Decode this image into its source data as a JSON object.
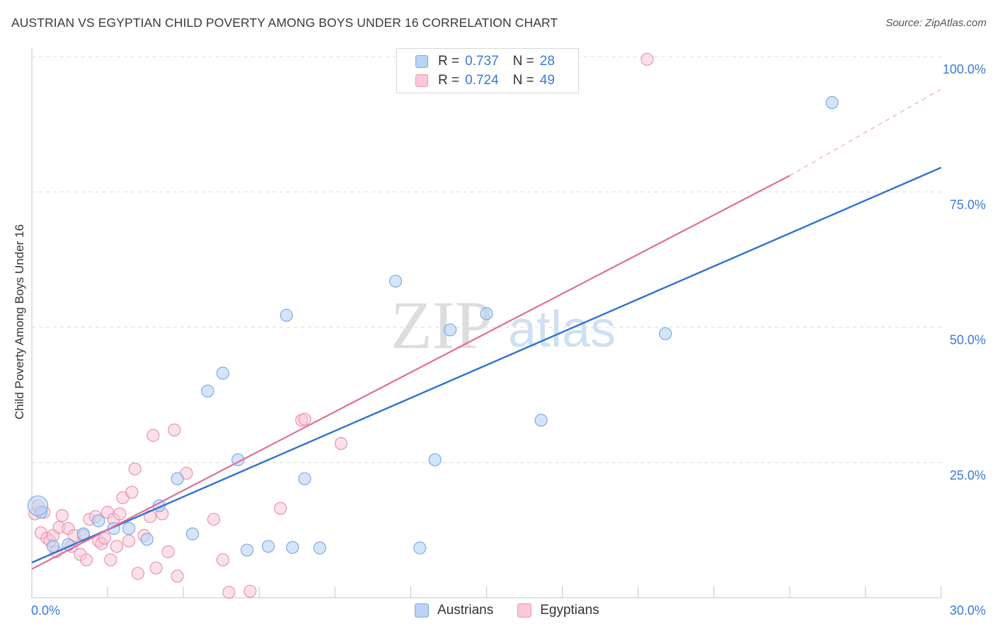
{
  "title": "AUSTRIAN VS EGYPTIAN CHILD POVERTY AMONG BOYS UNDER 16 CORRELATION CHART",
  "source": "Source: ZipAtlas.com",
  "watermark": {
    "zip": "ZIP",
    "atlas": "atlas"
  },
  "colors": {
    "austrians_fill": "#b9d3f5",
    "austrians_stroke": "#7ea9e3",
    "austrians_line": "#2f72cf",
    "egyptians_fill": "#f9c9d7",
    "egyptians_stroke": "#e994ae",
    "egyptians_line": "#e06e96",
    "grid": "#dcdcdc",
    "tick_label": "#3a7bd5"
  },
  "legend": {
    "austrians": {
      "r_label": "R =",
      "r_value": "0.737",
      "n_label": "N =",
      "n_value": "28"
    },
    "egyptians": {
      "r_label": "R =",
      "r_value": "0.724",
      "n_label": "N =",
      "n_value": "49"
    }
  },
  "chart_data": {
    "type": "scatter",
    "title": "AUSTRIAN VS EGYPTIAN CHILD POVERTY AMONG BOYS UNDER 16 CORRELATION CHART",
    "xlabel": "",
    "ylabel": "Child Poverty Among Boys Under 16",
    "xlim": [
      0,
      30
    ],
    "ylim": [
      0,
      100
    ],
    "x_ticks": [
      {
        "value": 0,
        "label": "0.0%"
      },
      {
        "value": 30,
        "label": "30.0%"
      }
    ],
    "y_ticks": [
      {
        "value": 25,
        "label": "25.0%"
      },
      {
        "value": 50,
        "label": "50.0%"
      },
      {
        "value": 75,
        "label": "75.0%"
      },
      {
        "value": 100,
        "label": "100.0%"
      }
    ],
    "grid": true,
    "legend_position": "top-center",
    "series": [
      {
        "name": "Austrians",
        "points": [
          [
            0.3,
            15.8
          ],
          [
            0.7,
            9.5
          ],
          [
            1.2,
            9.8
          ],
          [
            1.7,
            11.8
          ],
          [
            2.2,
            14.2
          ],
          [
            2.7,
            12.8
          ],
          [
            3.2,
            12.8
          ],
          [
            3.8,
            10.8
          ],
          [
            4.2,
            17.0
          ],
          [
            4.8,
            22.0
          ],
          [
            5.3,
            11.8
          ],
          [
            5.8,
            38.2
          ],
          [
            6.3,
            41.5
          ],
          [
            6.8,
            25.5
          ],
          [
            7.1,
            8.8
          ],
          [
            7.8,
            9.5
          ],
          [
            8.4,
            52.2
          ],
          [
            8.6,
            9.3
          ],
          [
            9.0,
            22.0
          ],
          [
            9.5,
            9.2
          ],
          [
            12.0,
            58.5
          ],
          [
            12.8,
            9.2
          ],
          [
            13.3,
            25.5
          ],
          [
            13.8,
            49.5
          ],
          [
            15.0,
            52.5
          ],
          [
            16.8,
            32.8
          ],
          [
            20.9,
            48.8
          ],
          [
            26.4,
            91.5
          ]
        ],
        "trend": {
          "x0": 0,
          "y0": 6.5,
          "x1": 30,
          "y1": 79.5
        }
      },
      {
        "name": "Egyptians",
        "points": [
          [
            0.1,
            15.5
          ],
          [
            0.2,
            17.0
          ],
          [
            0.3,
            12.0
          ],
          [
            0.4,
            15.8
          ],
          [
            0.5,
            11.0
          ],
          [
            0.6,
            10.5
          ],
          [
            0.7,
            11.5
          ],
          [
            0.8,
            8.5
          ],
          [
            0.9,
            13.0
          ],
          [
            1.0,
            15.2
          ],
          [
            1.2,
            12.8
          ],
          [
            1.3,
            9.5
          ],
          [
            1.4,
            11.5
          ],
          [
            1.6,
            8.0
          ],
          [
            1.7,
            11.5
          ],
          [
            1.8,
            7.0
          ],
          [
            1.9,
            14.5
          ],
          [
            2.1,
            15.0
          ],
          [
            2.2,
            10.5
          ],
          [
            2.3,
            10.0
          ],
          [
            2.4,
            11.0
          ],
          [
            2.5,
            15.8
          ],
          [
            2.6,
            7.0
          ],
          [
            2.7,
            14.5
          ],
          [
            2.8,
            9.5
          ],
          [
            2.9,
            15.5
          ],
          [
            3.0,
            18.5
          ],
          [
            3.2,
            10.5
          ],
          [
            3.3,
            19.5
          ],
          [
            3.4,
            23.8
          ],
          [
            3.5,
            4.5
          ],
          [
            3.7,
            11.5
          ],
          [
            3.9,
            15.0
          ],
          [
            4.0,
            30.0
          ],
          [
            4.1,
            5.5
          ],
          [
            4.3,
            15.5
          ],
          [
            4.5,
            8.5
          ],
          [
            4.7,
            31.0
          ],
          [
            4.8,
            4.0
          ],
          [
            5.1,
            23.0
          ],
          [
            6.0,
            14.5
          ],
          [
            6.3,
            7.0
          ],
          [
            6.5,
            1.0
          ],
          [
            7.2,
            1.2
          ],
          [
            8.2,
            16.5
          ],
          [
            8.9,
            32.8
          ],
          [
            9.0,
            33.0
          ],
          [
            10.2,
            28.5
          ],
          [
            20.3,
            99.5
          ]
        ],
        "trend": {
          "x0": 0,
          "y0": 5.3,
          "x1": 25,
          "y1": 78.0
        },
        "trend_extension": {
          "x0": 25,
          "y0": 78.0,
          "x1": 30,
          "y1": 94.0
        }
      }
    ]
  },
  "bottom_legend": {
    "austrians": "Austrians",
    "egyptians": "Egyptians"
  }
}
